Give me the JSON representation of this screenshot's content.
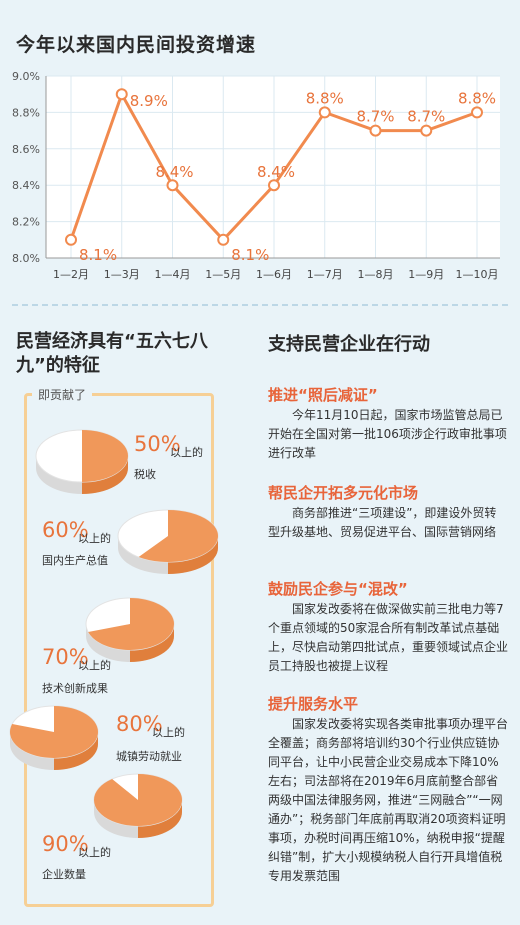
{
  "chart_title": "今年以来国内民间投资增速",
  "chart_data": {
    "type": "line",
    "categories": [
      "1—2月",
      "1—3月",
      "1—4月",
      "1—5月",
      "1—6月",
      "1—7月",
      "1—8月",
      "1—9月",
      "1—10月"
    ],
    "values": [
      8.1,
      8.9,
      8.4,
      8.1,
      8.4,
      8.8,
      8.7,
      8.7,
      8.8
    ],
    "data_labels": [
      "8.1%",
      "8.9%",
      "8.4%",
      "8.1%",
      "8.4%",
      "8.8%",
      "8.7%",
      "8.7%",
      "8.8%"
    ],
    "y_ticks": [
      "8.0%",
      "8.2%",
      "8.4%",
      "8.6%",
      "8.8%",
      "9.0%"
    ],
    "ylim": [
      8.0,
      9.0
    ],
    "grid": true,
    "color": "#f18a4e"
  },
  "left_title": "民营经济具有“五六七八九”的特征",
  "right_title": "支持民营企业在行动",
  "contribution_label": "即贡献了",
  "pie_stats": [
    {
      "percent": 50,
      "pct_text": "50%",
      "suffix": "以上的",
      "caption": "税收"
    },
    {
      "percent": 60,
      "pct_text": "60%",
      "suffix": "以上的",
      "caption": "国内生产总值"
    },
    {
      "percent": 70,
      "pct_text": "70%",
      "suffix": "以上的",
      "caption": "技术创新成果"
    },
    {
      "percent": 80,
      "pct_text": "80%",
      "suffix": "以上的",
      "caption": "城镇劳动就业"
    },
    {
      "percent": 90,
      "pct_text": "90%",
      "suffix": "以上的",
      "caption": "企业数量"
    }
  ],
  "colors": {
    "orange": "#f0985a",
    "orange_side": "#e07f3c",
    "white_side": "#d9d9d9",
    "accent": "#e8643a"
  },
  "sections": [
    {
      "heading": "推进“照后减证”",
      "body": "今年11月10日起，国家市场监管总局已开始在全国对第一批106项涉企行政审批事项进行改革"
    },
    {
      "heading": "帮民企开拓多元化市场",
      "body": "商务部推进“三项建设”，即建设外贸转型升级基地、贸易促进平台、国际营销网络"
    },
    {
      "heading": "鼓励民企参与“混改”",
      "body": "国家发改委将在做深做实前三批电力等7个重点领域的50家混合所有制改革试点基础上，尽快启动第四批试点，重要领域试点企业员工持股也被提上议程"
    },
    {
      "heading": "提升服务水平",
      "body": "国家发改委将实现各类审批事项办理平台全覆盖；商务部将培训约30个行业供应链协同平台，让中小民营企业交易成本下降10%左右；司法部将在2019年6月底前整合部省两级中国法律服务网，推进“三网融合”“一网通办”；税务部门年底前再取消20项资料证明事项，办税时间再压缩10%，纳税申报“提醒纠错”制，扩大小规模纳税人自行开具增值税专用发票范围"
    }
  ]
}
